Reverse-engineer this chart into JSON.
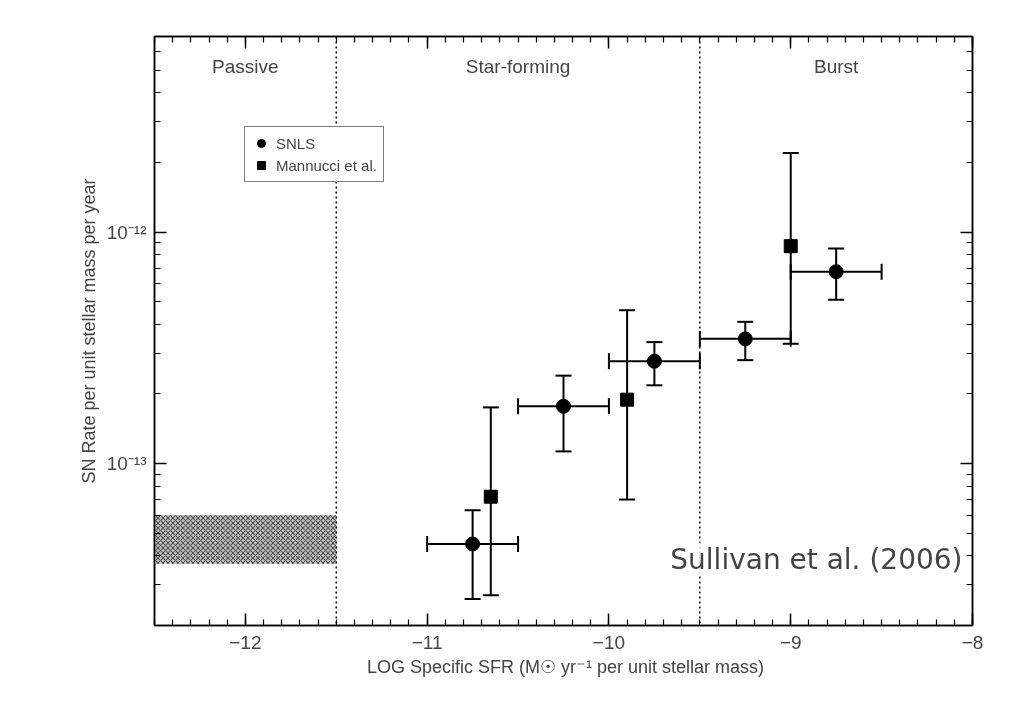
{
  "chart_data": {
    "type": "scatter",
    "xlabel": "LOG Specific SFR (M☉ yr⁻¹ per unit stellar mass)",
    "ylabel": "SN Rate per unit stellar mass per year",
    "log": "y",
    "xlim": [
      -12.5,
      -8
    ],
    "xticks": [
      -12,
      -11,
      -10,
      -9,
      -8
    ],
    "ylim": [
      2e-14,
      7e-12
    ],
    "yticks": [
      {
        "value": 1e-13,
        "label": "10⁻¹³"
      },
      {
        "value": 1e-12,
        "label": "10⁻¹²"
      }
    ],
    "grid": false,
    "legend": "top left",
    "series": [
      {
        "name": "SNLS",
        "marker": "circle",
        "color": "#000000",
        "x": [
          -10.75,
          -10.25,
          -9.75,
          -9.25,
          -8.75
        ],
        "values": [
          4.5e-14,
          1.77e-13,
          2.77e-13,
          3.46e-13,
          6.75e-13
        ],
        "errors": [
          [
            2.6e-14,
            6.3e-14
          ],
          [
            1.13e-13,
            2.4e-13
          ],
          [
            2.18e-13,
            3.35e-13
          ],
          [
            2.8e-13,
            4.1e-13
          ],
          [
            5.1e-13,
            8.5e-13
          ]
        ],
        "xerrors": [
          [
            -11.0,
            -10.5
          ],
          [
            -10.5,
            -10.0
          ],
          [
            -10.0,
            -9.5
          ],
          [
            -9.5,
            -9.0
          ],
          [
            -9.0,
            -8.5
          ]
        ]
      },
      {
        "name": "Mannucci et al.",
        "marker": "square",
        "color": "#000000",
        "x": [
          -10.65,
          -9.9,
          -9.0
        ],
        "values": [
          7.2e-14,
          1.89e-13,
          8.7e-13
        ],
        "errors": [
          [
            2.7e-14,
            1.75e-13
          ],
          [
            7e-14,
            4.6e-13
          ],
          [
            3.3e-13,
            2.2e-12
          ]
        ]
      },
      {
        "type": "area",
        "color": "#555555",
        "x": [
          -12.5,
          -11.5
        ],
        "values": [
          null,
          null
        ],
        "lower": [
          3.7e-14,
          3.7e-14
        ],
        "upper": [
          6e-14,
          6e-14
        ]
      }
    ],
    "ref_lines": [
      {
        "axis": "x",
        "value": -11.5,
        "line_style": "dotted",
        "color": "#000000"
      },
      {
        "axis": "x",
        "value": -9.5,
        "line_style": "dotted",
        "color": "#000000"
      }
    ],
    "annotations": [
      "Passive",
      "Star-forming",
      "Burst",
      "Sullivan et al. (2006)"
    ]
  }
}
